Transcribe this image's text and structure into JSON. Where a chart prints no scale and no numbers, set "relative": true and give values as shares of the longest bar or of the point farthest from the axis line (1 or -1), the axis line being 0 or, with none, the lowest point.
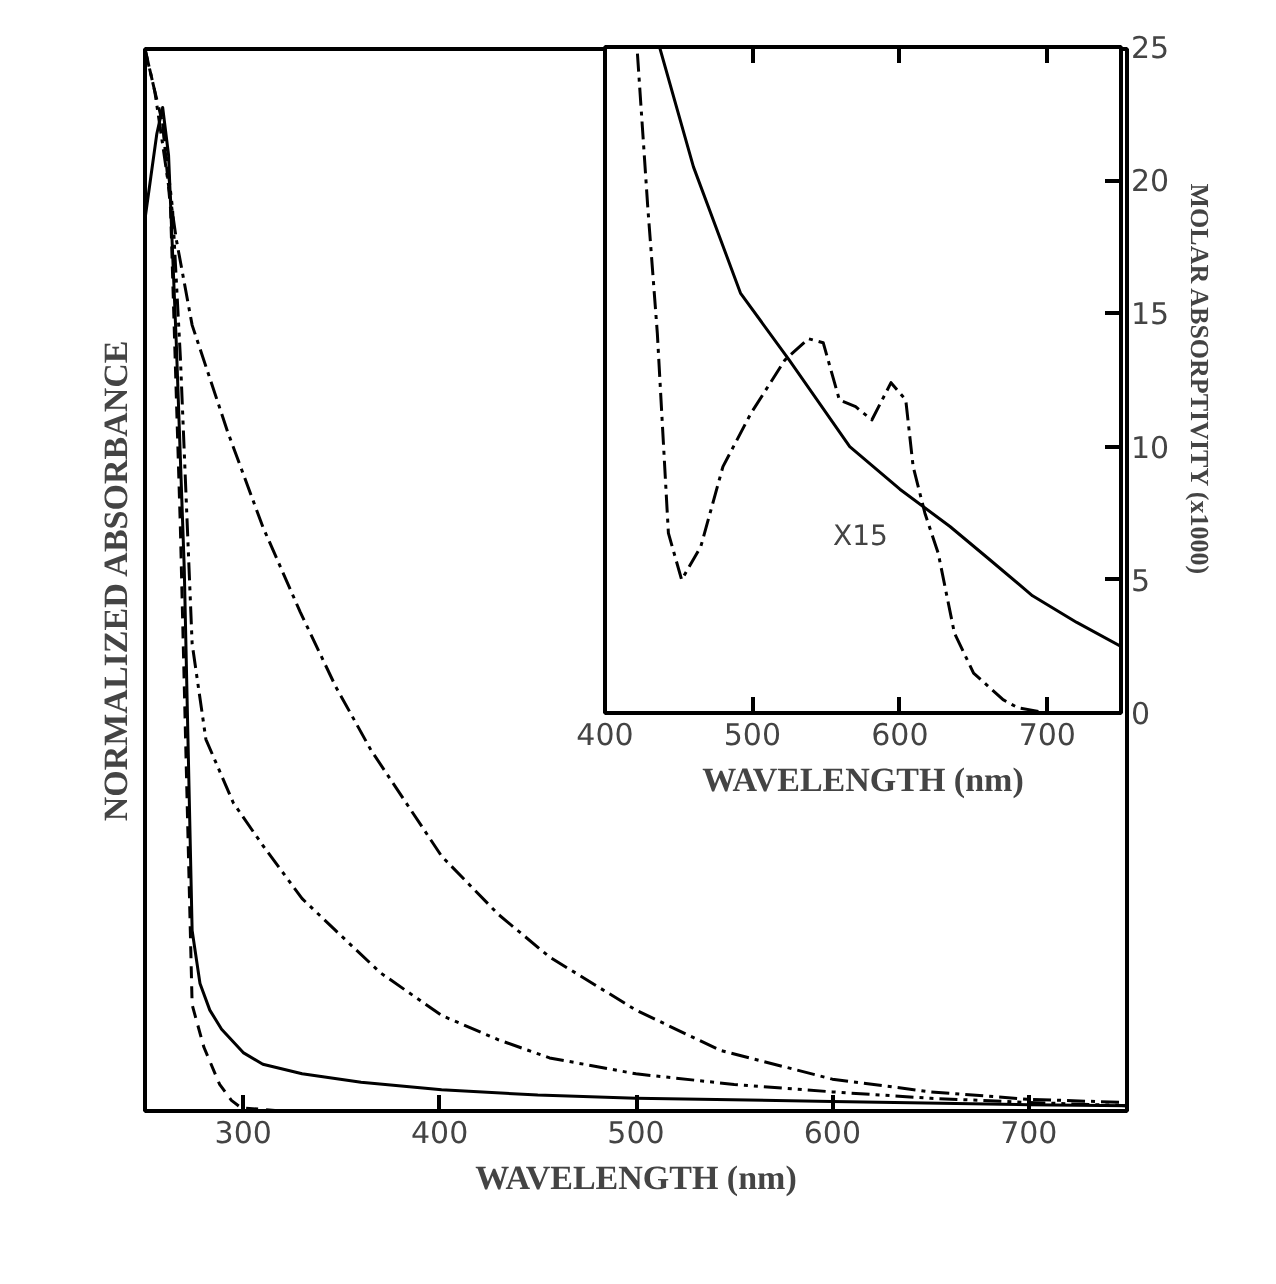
{
  "chart_data": [
    {
      "type": "line",
      "relative": true,
      "xlabel": "WAVELENGTH (nm)",
      "ylabel": "NORMALIZED ABSORBANCE",
      "xlim": [
        250,
        750
      ],
      "xticks": [
        300,
        400,
        500,
        600,
        700
      ],
      "tick_labels": "x",
      "grid": false,
      "marker": "none",
      "series": [
        {
          "color": "#000000",
          "line_style": "solid",
          "x": [
            250,
            253,
            256,
            259,
            262,
            266,
            270,
            274,
            278,
            283,
            289,
            300,
            310,
            330,
            360,
            401,
            450,
            500,
            600,
            700,
            750
          ],
          "values": [
            0.84,
            0.88,
            0.92,
            0.945,
            0.9,
            0.72,
            0.51,
            0.17,
            0.12,
            0.095,
            0.077,
            0.055,
            0.044,
            0.035,
            0.027,
            0.02,
            0.015,
            0.012,
            0.009,
            0.006,
            0.005
          ]
        },
        {
          "color": "#000000",
          "line_style": "dashed",
          "x": [
            250,
            255,
            259,
            263,
            268,
            274,
            280,
            288,
            294,
            299,
            320,
            400,
            500,
            600,
            750
          ],
          "values": [
            1.0,
            0.96,
            0.93,
            0.85,
            0.55,
            0.1,
            0.06,
            0.025,
            0.01,
            0.003,
            0.0,
            0.0,
            0.0,
            0.0,
            0.0
          ]
        },
        {
          "color": "#000000",
          "line_style": "dashdotdot",
          "x": [
            259,
            264,
            268,
            274,
            281,
            295,
            310,
            330,
            347,
            370,
            401,
            430,
            456,
            500,
            550,
            600,
            650,
            700,
            750
          ],
          "values": [
            0.93,
            0.85,
            0.71,
            0.44,
            0.35,
            0.29,
            0.25,
            0.2,
            0.17,
            0.13,
            0.09,
            0.067,
            0.05,
            0.035,
            0.025,
            0.018,
            0.012,
            0.008,
            0.005
          ]
        },
        {
          "color": "#000000",
          "line_style": "dashdot",
          "x": [
            250,
            255,
            259,
            266,
            274,
            283,
            292,
            310,
            329,
            347,
            365,
            383,
            401,
            430,
            456,
            500,
            543,
            600,
            650,
            700,
            750
          ],
          "values": [
            1.0,
            0.96,
            0.91,
            0.82,
            0.74,
            0.69,
            0.64,
            0.55,
            0.47,
            0.4,
            0.34,
            0.29,
            0.24,
            0.185,
            0.145,
            0.095,
            0.057,
            0.03,
            0.018,
            0.011,
            0.008
          ]
        }
      ]
    },
    {
      "type": "line",
      "xlabel": "WAVELENGTH (nm)",
      "y2label": "MOLAR ABSORPTIVITY (x1000)",
      "xlim": [
        400,
        750
      ],
      "xticks": [
        400,
        500,
        600,
        700
      ],
      "y2lim": [
        0,
        25
      ],
      "y2ticks": [
        0,
        5,
        10,
        15,
        20,
        25
      ],
      "grid": false,
      "marker": "none",
      "annotations": [
        "X15"
      ],
      "series": [
        {
          "color": "#000000",
          "line_style": "solid",
          "axis": "y2",
          "x": [
            437,
            460,
            492,
            525,
            566,
            600,
            634,
            660,
            690,
            720,
            750
          ],
          "values": [
            25,
            20.5,
            15.75,
            13.25,
            10,
            8.4,
            7,
            5.8,
            4.4,
            3.4,
            2.5
          ]
        },
        {
          "color": "#000000",
          "line_style": "dashdot",
          "axis": "y2",
          "x": [
            422,
            429,
            435.5,
            443,
            452,
            465,
            480,
            499,
            522,
            538,
            548,
            559,
            570,
            581,
            594,
            604,
            609,
            617,
            626,
            637,
            650,
            670,
            680,
            700,
            750
          ],
          "values": [
            24.75,
            19,
            14.25,
            6.75,
            5,
            6.25,
            9.25,
            11.25,
            13.25,
            14.05,
            13.9,
            11.75,
            11.5,
            11,
            12.4,
            11.75,
            9.25,
            7.5,
            6,
            3,
            1.5,
            0.5,
            0.2,
            0,
            0
          ]
        }
      ]
    }
  ]
}
